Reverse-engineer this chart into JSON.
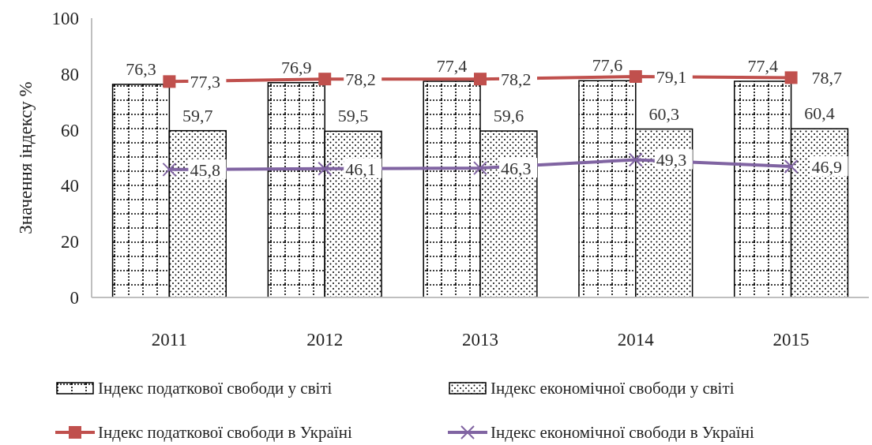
{
  "chart_data": {
    "type": "bar",
    "categories": [
      "2011",
      "2012",
      "2013",
      "2014",
      "2015"
    ],
    "ylabel": "Значення індексу  %",
    "ylim": [
      0,
      100
    ],
    "yticks": [
      0,
      20,
      40,
      60,
      80,
      100
    ],
    "series": [
      {
        "name": "Індекс податкової свободи у світі",
        "color": "#000000",
        "values": [
          76.3,
          76.9,
          77.4,
          77.6,
          77.4
        ],
        "value_labels": [
          "76,3",
          "76,9",
          "77,4",
          "77,6",
          "77,4"
        ]
      },
      {
        "name": "Індекс економічної свободи у світі",
        "color": "#000000",
        "values": [
          59.7,
          59.5,
          59.6,
          60.3,
          60.4
        ],
        "value_labels": [
          "59,7",
          "59,5",
          "59,6",
          "60,3",
          "60,4"
        ]
      },
      {
        "name": "Індекс податкової свободи в Україні",
        "type": "line",
        "color": "#c0504d",
        "marker": "square",
        "values": [
          77.3,
          78.2,
          78.2,
          79.1,
          78.7
        ],
        "value_labels": [
          "77,3",
          "78,2",
          "78,2",
          "79,1",
          "78,7"
        ]
      },
      {
        "name": "Індекс економічної свободи в Україні",
        "type": "line",
        "color": "#8064a2",
        "marker": "cross",
        "values": [
          45.8,
          46.1,
          46.3,
          49.3,
          46.9
        ],
        "value_labels": [
          "45,8",
          "46,1",
          "46,3",
          "49,3",
          "46,9"
        ]
      }
    ],
    "legend": "bottom"
  }
}
